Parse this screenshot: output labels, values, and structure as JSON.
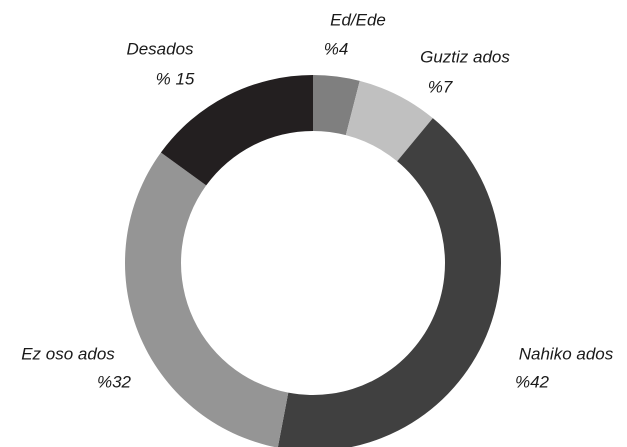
{
  "chart_data": {
    "type": "donut",
    "categories": [
      "Ed/Ede",
      "Guztiz ados",
      "Nahiko ados",
      "Ez oso ados",
      "Desados"
    ],
    "values": [
      4,
      7,
      42,
      32,
      15
    ],
    "value_labels": [
      "%4",
      "%7",
      "%42",
      "%32",
      "% 15"
    ],
    "colors": [
      "#7f7f7f",
      "#c0c0c0",
      "#404040",
      "#959595",
      "#231f20"
    ]
  }
}
